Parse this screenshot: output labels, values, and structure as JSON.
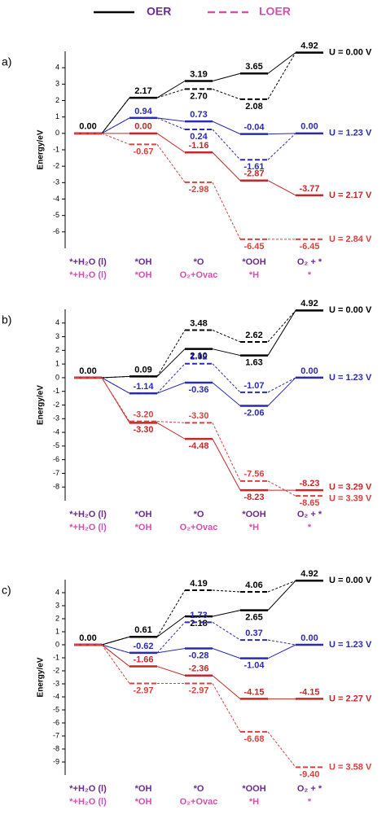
{
  "legend": {
    "items": [
      {
        "name": "OER",
        "text_color": "#6a2c91",
        "line_color": "#000000",
        "dash": false
      },
      {
        "name": "LOER",
        "text_color": "#d44fae",
        "line_color": "#d44fae",
        "dash": true
      }
    ]
  },
  "chart_data": [
    {
      "type": "energy",
      "label": "a)",
      "ylabel": "Energy/eV",
      "ylim": [
        -7,
        5
      ],
      "yticks": [
        4,
        3,
        2,
        1,
        0,
        -1,
        -2,
        -3,
        -4,
        -5,
        -6
      ],
      "categories": [
        "*+H₂O (l)",
        "*OH",
        "*O",
        "*OOH",
        "O₂ + *"
      ],
      "loer_categories": [
        "*+H₂O (l)",
        "*OH",
        "O₂+Ovac",
        "*H",
        "*"
      ],
      "series": [
        {
          "color": "#000000",
          "dash": false,
          "label": "U = 0.00 V",
          "values": [
            0,
            2.17,
            3.19,
            3.65,
            4.92
          ],
          "value_labels": [
            "0.00",
            "2.17",
            "3.19",
            "3.65",
            "4.92"
          ]
        },
        {
          "color": "#000000",
          "dash": true,
          "values": [
            0,
            2.17,
            2.7,
            2.08,
            4.92
          ],
          "value_labels": [
            null,
            null,
            "2.70",
            "2.08",
            null
          ]
        },
        {
          "color": "#2b2bb0",
          "dash": false,
          "label": "U = 1.23 V",
          "values": [
            0,
            0.94,
            0.73,
            -0.04,
            0
          ],
          "value_labels": [
            null,
            "0.94",
            "0.73",
            "-0.04",
            "0.00"
          ]
        },
        {
          "color": "#2b2bb0",
          "dash": true,
          "values": [
            0,
            0.94,
            0.24,
            -1.61,
            0
          ],
          "value_labels": [
            null,
            null,
            "0.24",
            "-1.61",
            null
          ]
        },
        {
          "color": "#c62828",
          "dash": false,
          "label": "U = 2.17 V",
          "values": [
            0,
            0,
            -1.16,
            -2.87,
            -3.77
          ],
          "value_labels": [
            null,
            "0.00",
            "-1.16",
            "-2.87",
            "-3.77"
          ]
        },
        {
          "color": "#d9413e",
          "dash": true,
          "label": "U = 2.84 V",
          "values": [
            0,
            -0.67,
            -2.98,
            -6.45,
            -6.45
          ],
          "value_labels": [
            null,
            "-0.67",
            "-2.98",
            "-6.45",
            "-6.45"
          ]
        }
      ]
    },
    {
      "type": "energy",
      "label": "b)",
      "ylabel": "Energy/eV",
      "ylim": [
        -9,
        5
      ],
      "yticks": [
        4,
        3,
        2,
        1,
        0,
        -1,
        -2,
        -3,
        -4,
        -5,
        -6,
        -7,
        -8
      ],
      "categories": [
        "*+H₂O (l)",
        "*OH",
        "*O",
        "*OOH",
        "O₂ + *"
      ],
      "loer_categories": [
        "*+H₂O (l)",
        "*OH",
        "O₂+Ovac",
        "*H",
        "*"
      ],
      "series": [
        {
          "color": "#000000",
          "dash": false,
          "label": "U = 0.00 V",
          "values": [
            0,
            0.09,
            2.1,
            1.63,
            4.92
          ],
          "value_labels": [
            "0.00",
            "0.09",
            "2.10",
            "1.63",
            "4.92"
          ]
        },
        {
          "color": "#000000",
          "dash": true,
          "values": [
            0,
            0.09,
            3.48,
            2.62,
            4.92
          ],
          "value_labels": [
            null,
            null,
            "3.48",
            "2.62",
            null
          ]
        },
        {
          "color": "#2b2bb0",
          "dash": false,
          "label": "U = 1.23 V",
          "values": [
            0,
            -1.14,
            -0.36,
            -2.06,
            0
          ],
          "value_labels": [
            null,
            "-1.14",
            "-0.36",
            "-2.06",
            "0.00"
          ]
        },
        {
          "color": "#2b2bb0",
          "dash": true,
          "values": [
            0,
            -1.14,
            1.02,
            -1.07,
            0
          ],
          "value_labels": [
            null,
            null,
            "1.02",
            "-1.07",
            null
          ]
        },
        {
          "color": "#c62828",
          "dash": false,
          "label": "U = 3.29 V",
          "values": [
            0,
            -3.3,
            -4.48,
            -8.23,
            -8.23
          ],
          "value_labels": [
            null,
            "-3.30",
            "-4.48",
            "-8.23",
            "-8.23"
          ]
        },
        {
          "color": "#d9413e",
          "dash": true,
          "label": "U = 3.39 V",
          "values": [
            0,
            -3.2,
            -3.3,
            -7.56,
            -8.65
          ],
          "value_labels": [
            null,
            "-3.20",
            "-3.30",
            "-7.56",
            "-8.65"
          ]
        }
      ]
    },
    {
      "type": "energy",
      "label": "c)",
      "ylabel": "Energy/eV",
      "ylim": [
        -10,
        5
      ],
      "yticks": [
        4,
        3,
        2,
        1,
        0,
        -1,
        -2,
        -3,
        -4,
        -5,
        -6,
        -7,
        -8,
        -9
      ],
      "categories": [
        "*+H₂O (l)",
        "*OH",
        "*O",
        "*OOH",
        "O₂ + *"
      ],
      "loer_categories": [
        "*+H₂O (l)",
        "*OH",
        "O₂+Ovac",
        "*H",
        "*"
      ],
      "series": [
        {
          "color": "#000000",
          "dash": false,
          "label": "U = 0.00 V",
          "values": [
            0,
            0.61,
            2.18,
            2.65,
            4.92
          ],
          "value_labels": [
            "0.00",
            "0.61",
            "2.18",
            "2.65",
            "4.92"
          ]
        },
        {
          "color": "#000000",
          "dash": true,
          "values": [
            0,
            0.61,
            4.19,
            4.06,
            4.92
          ],
          "value_labels": [
            null,
            null,
            "4.19",
            "4.06",
            null
          ]
        },
        {
          "color": "#2b2bb0",
          "dash": false,
          "label": "U = 1.23 V",
          "values": [
            0,
            -0.62,
            -0.28,
            -1.04,
            0
          ],
          "value_labels": [
            null,
            "-0.62",
            "-0.28",
            "-1.04",
            "0.00"
          ]
        },
        {
          "color": "#2b2bb0",
          "dash": true,
          "values": [
            0,
            -0.62,
            1.73,
            0.37,
            0
          ],
          "value_labels": [
            null,
            null,
            "1.73",
            "0.37",
            null
          ]
        },
        {
          "color": "#c62828",
          "dash": false,
          "label": "U = 2.27 V",
          "values": [
            0,
            -1.66,
            -2.36,
            -4.15,
            -4.15
          ],
          "value_labels": [
            null,
            "-1.66",
            "-2.36",
            "-4.15",
            "-4.15"
          ]
        },
        {
          "color": "#d9413e",
          "dash": true,
          "label": "U = 3.58 V",
          "values": [
            0,
            -2.97,
            -2.97,
            -6.68,
            -9.4
          ],
          "value_labels": [
            null,
            "-2.97",
            "-2.97",
            "-6.68",
            "-9.40"
          ]
        }
      ]
    }
  ]
}
